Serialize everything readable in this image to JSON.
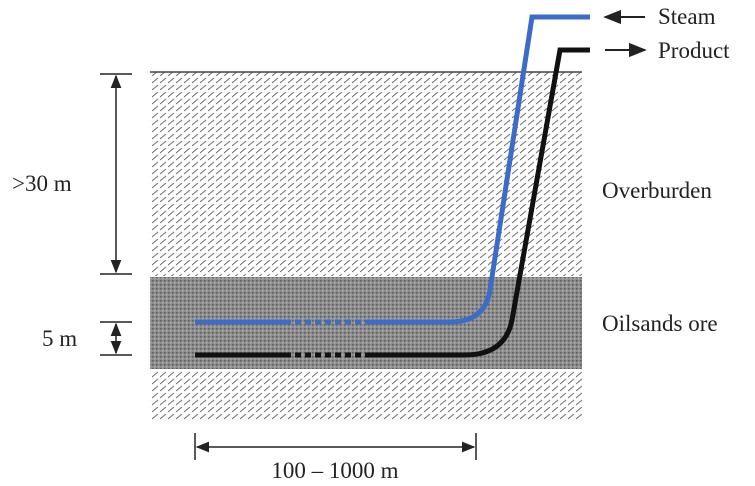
{
  "labels": {
    "steam": "Steam",
    "product": "Product",
    "overburden": "Overburden",
    "ore": "Oilsands ore",
    "depth": ">30 m",
    "thickness": "5 m",
    "length": "100 – 1000 m"
  }
}
